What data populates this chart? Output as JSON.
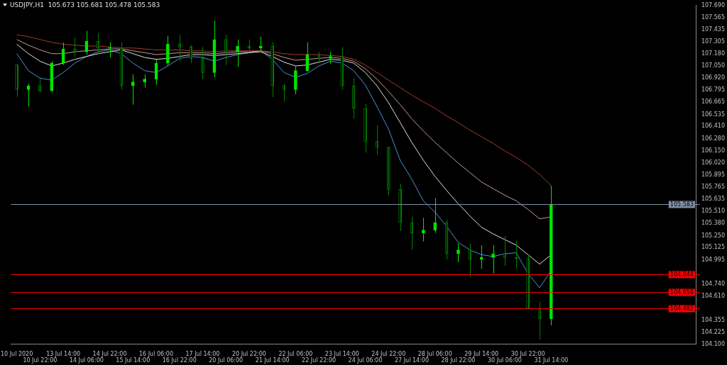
{
  "chart_data": {
    "type": "candlestick",
    "title": "USDJPY,H1  105.673 105.681 105.478 105.583",
    "categories": [
      "10 Jul 2020",
      null,
      "10 Jul 22:00",
      null,
      "13 Jul 14:00",
      null,
      "14 Jul 06:00",
      null,
      "14 Jul 22:00",
      null,
      "15 Jul 14:00",
      null,
      "16 Jul 06:00",
      null,
      "16 Jul 22:00",
      null,
      "17 Jul 14:00",
      null,
      "20 Jul 06:00",
      null,
      "20 Jul 22:00",
      null,
      "21 Jul 14:00",
      null,
      "22 Jul 06:00",
      null,
      "22 Jul 22:00",
      null,
      "23 Jul 14:00",
      null,
      "24 Jul 06:00",
      null,
      "24 Jul 22:00",
      null,
      "27 Jul 14:00",
      null,
      "28 Jul 06:00",
      null,
      "28 Jul 22:00",
      null,
      "29 Jul 14:00",
      null,
      "30 Jul 06:00",
      null,
      "30 Jul 22:00",
      null,
      "31 Jul 14:00",
      null,
      null,
      null,
      null,
      null,
      null,
      null,
      null,
      null,
      null,
      null,
      null
    ],
    "ohlc": [
      [
        107.06,
        107.07,
        106.72,
        106.8
      ],
      [
        106.8,
        106.86,
        106.62,
        106.84
      ],
      [
        106.84,
        106.93,
        106.77,
        106.79
      ],
      [
        106.79,
        107.1,
        106.77,
        107.08
      ],
      [
        107.08,
        107.3,
        107.06,
        107.23
      ],
      [
        107.23,
        107.35,
        107.15,
        107.2
      ],
      [
        107.2,
        107.42,
        107.17,
        107.31
      ],
      [
        107.31,
        107.4,
        107.18,
        107.24
      ],
      [
        107.24,
        107.3,
        107.14,
        107.24
      ],
      [
        107.24,
        107.3,
        106.8,
        106.84
      ],
      [
        106.84,
        106.96,
        106.64,
        106.88
      ],
      [
        106.88,
        106.96,
        106.82,
        106.91
      ],
      [
        106.91,
        107.12,
        106.85,
        107.08
      ],
      [
        107.08,
        107.37,
        107.05,
        107.28
      ],
      [
        107.28,
        107.38,
        107.1,
        107.25
      ],
      [
        107.25,
        107.27,
        107.08,
        107.13
      ],
      [
        107.13,
        107.25,
        106.91,
        106.98
      ],
      [
        106.98,
        107.53,
        106.93,
        107.33
      ],
      [
        107.33,
        107.38,
        107.06,
        107.2
      ],
      [
        107.2,
        107.33,
        107.04,
        107.26
      ],
      [
        107.26,
        107.33,
        107.2,
        107.24
      ],
      [
        107.24,
        107.36,
        107.21,
        107.26
      ],
      [
        107.26,
        107.3,
        106.72,
        106.84
      ],
      [
        106.84,
        106.86,
        106.67,
        106.8
      ],
      [
        106.8,
        107.05,
        106.75,
        107.0
      ],
      [
        107.0,
        107.3,
        106.99,
        107.17
      ],
      [
        107.17,
        107.2,
        107.08,
        107.13
      ],
      [
        107.13,
        107.2,
        107.07,
        107.15
      ],
      [
        107.15,
        107.25,
        106.8,
        106.84
      ],
      [
        106.84,
        106.92,
        106.49,
        106.6
      ],
      [
        106.6,
        106.65,
        106.13,
        106.25
      ],
      [
        106.25,
        106.42,
        106.11,
        106.19
      ],
      [
        106.19,
        106.19,
        105.68,
        105.74
      ],
      [
        105.74,
        105.8,
        105.3,
        105.39
      ],
      [
        105.39,
        105.45,
        105.1,
        105.28
      ],
      [
        105.28,
        105.44,
        105.19,
        105.31
      ],
      [
        105.31,
        105.65,
        105.28,
        105.39
      ],
      [
        105.39,
        105.42,
        105.0,
        105.06
      ],
      [
        105.06,
        105.17,
        104.97,
        105.1
      ],
      [
        105.1,
        105.17,
        104.81,
        105.0
      ],
      [
        105.0,
        105.15,
        104.9,
        105.02
      ],
      [
        105.02,
        105.15,
        104.85,
        105.06
      ],
      [
        105.06,
        105.25,
        104.93,
        105.02
      ],
      [
        105.02,
        105.2,
        104.9,
        105.01
      ],
      [
        105.01,
        105.05,
        104.47,
        104.48
      ],
      [
        104.48,
        104.55,
        104.15,
        104.37
      ],
      [
        104.37,
        105.78,
        104.3,
        105.583
      ],
      null,
      null,
      null,
      null,
      null,
      null,
      null,
      null,
      null,
      null,
      null,
      null
    ],
    "colors": [
      "#007f00",
      "#00e600",
      "#007f00",
      "#00e600",
      "#00e600",
      "#007f00",
      "#00e600",
      "#007f00",
      "#00e600",
      "#007f00",
      "#00e600",
      "#00e600",
      "#00e600",
      "#00e600",
      "#007f00",
      "#007f00",
      "#007f00",
      "#00e600",
      "#007f00",
      "#00e600",
      "#007f00",
      "#00e600",
      "#007f00",
      "#007f00",
      "#00e600",
      "#00e600",
      "#007f00",
      "#00e600",
      "#007f00",
      "#007f00",
      "#007f00",
      "#007f00",
      "#007f00",
      "#007f00",
      "#007f00",
      "#00e600",
      "#00e600",
      "#007f00",
      "#00e600",
      "#007f00",
      "#00e600",
      "#00e600",
      "#007f00",
      "#007f00",
      "#007f00",
      "#007f00",
      "#00e600",
      null,
      null,
      null,
      null,
      null,
      null,
      null,
      null,
      null,
      null,
      null,
      null
    ],
    "series": [
      {
        "type": "line",
        "color": "#a33a28",
        "values": [
          107.38,
          107.36,
          107.33,
          107.3,
          107.28,
          107.27,
          107.26,
          107.26,
          107.25,
          107.24,
          107.24,
          107.23,
          107.22,
          107.22,
          107.22,
          107.21,
          107.21,
          107.2,
          107.21,
          107.21,
          107.21,
          107.21,
          107.2,
          107.18,
          107.17,
          107.17,
          107.17,
          107.16,
          107.15,
          107.12,
          107.06,
          106.98,
          106.9,
          106.82,
          106.74,
          106.67,
          106.6,
          106.52,
          106.45,
          106.37,
          106.3,
          106.23,
          106.15,
          106.08,
          106.0,
          105.9,
          105.78,
          null,
          null,
          null,
          null,
          null,
          null,
          null,
          null,
          null,
          null,
          null,
          null
        ]
      },
      {
        "type": "line",
        "color": "#c89890",
        "values": [
          107.33,
          107.27,
          107.22,
          107.18,
          107.18,
          107.2,
          107.21,
          107.22,
          107.23,
          107.23,
          107.21,
          107.19,
          107.17,
          107.18,
          107.19,
          107.19,
          107.19,
          107.18,
          107.19,
          107.2,
          107.2,
          107.21,
          107.18,
          107.14,
          107.11,
          107.12,
          107.13,
          107.14,
          107.13,
          107.1,
          107.02,
          106.91,
          106.78,
          106.64,
          106.49,
          106.36,
          106.24,
          106.13,
          106.02,
          105.92,
          105.82,
          105.75,
          105.68,
          105.62,
          105.53,
          105.43,
          105.45,
          null,
          null,
          null,
          null,
          null,
          null,
          null,
          null,
          null,
          null,
          null,
          null
        ]
      },
      {
        "type": "line",
        "color": "#e0e0e0",
        "values": [
          107.28,
          107.18,
          107.1,
          107.05,
          107.08,
          107.12,
          107.15,
          107.18,
          107.2,
          107.22,
          107.18,
          107.14,
          107.12,
          107.13,
          107.15,
          107.17,
          107.17,
          107.16,
          107.17,
          107.18,
          107.19,
          107.2,
          107.15,
          107.09,
          107.05,
          107.06,
          107.09,
          107.12,
          107.11,
          107.08,
          106.98,
          106.84,
          106.66,
          106.45,
          106.24,
          106.05,
          105.88,
          105.73,
          105.59,
          105.46,
          105.34,
          105.27,
          105.21,
          105.15,
          105.05,
          104.95,
          105.05,
          null,
          null,
          null,
          null,
          null,
          null,
          null,
          null,
          null,
          null,
          null,
          null
        ]
      },
      {
        "type": "line",
        "color": "#4a90d9",
        "values": [
          107.18,
          107.0,
          106.92,
          106.9,
          106.98,
          107.08,
          107.15,
          107.2,
          107.22,
          107.18,
          107.08,
          107.0,
          106.98,
          107.05,
          107.13,
          107.15,
          107.14,
          107.1,
          107.14,
          107.17,
          107.19,
          107.21,
          107.12,
          106.98,
          106.93,
          106.97,
          107.05,
          107.1,
          107.08,
          107.0,
          106.85,
          106.62,
          106.38,
          106.05,
          105.85,
          105.62,
          105.5,
          105.35,
          105.18,
          105.1,
          105.05,
          105.03,
          105.06,
          105.07,
          104.85,
          104.7,
          104.88,
          null,
          null,
          null,
          null,
          null,
          null,
          null,
          null,
          null,
          null,
          null,
          null
        ]
      }
    ],
    "ref_lines": [
      {
        "axis": "y",
        "value": 105.583,
        "label": "105.583",
        "color": "#8090a8"
      },
      {
        "axis": "y",
        "value": 104.844,
        "label": "104.844",
        "color": "#ff0000"
      },
      {
        "axis": "y",
        "value": 104.658,
        "label": "104.658",
        "color": "#ff0000"
      },
      {
        "axis": "y",
        "value": 104.482,
        "label": "104.482",
        "color": "#ff0000"
      }
    ],
    "ylim": [
      104.1,
      107.69
    ],
    "yticks": [
      {
        "value": 107.69,
        "label": "107.690"
      },
      {
        "value": 107.565,
        "label": "107.565"
      },
      {
        "value": 107.435,
        "label": "107.435"
      },
      {
        "value": 107.305,
        "label": "107.305"
      },
      {
        "value": 107.18,
        "label": "107.180"
      },
      {
        "value": 107.05,
        "label": "107.050"
      },
      {
        "value": 106.92,
        "label": "106.920"
      },
      {
        "value": 106.795,
        "label": "106.795"
      },
      {
        "value": 106.665,
        "label": "106.665"
      },
      {
        "value": 106.535,
        "label": "106.535"
      },
      {
        "value": 106.41,
        "label": "106.410"
      },
      {
        "value": 106.28,
        "label": "106.280"
      },
      {
        "value": 106.15,
        "label": "106.150"
      },
      {
        "value": 106.02,
        "label": "106.020"
      },
      {
        "value": 105.895,
        "label": "105.895"
      },
      {
        "value": 105.765,
        "label": "105.765"
      },
      {
        "value": 105.635,
        "label": "105.635"
      },
      {
        "value": 105.51,
        "label": "105.510"
      },
      {
        "value": 105.38,
        "label": "105.380"
      },
      {
        "value": 105.25,
        "label": "105.250"
      },
      {
        "value": 105.125,
        "label": "105.125"
      },
      {
        "value": 104.995,
        "label": "104.995"
      },
      {
        "value": 104.74,
        "label": "104.740"
      },
      {
        "value": 104.61,
        "label": "104.610"
      },
      {
        "value": 104.355,
        "label": "104.355"
      },
      {
        "value": 104.225,
        "label": "104.225"
      },
      {
        "value": 104.1,
        "label": "104.100"
      }
    ],
    "grid": false,
    "legend": false
  }
}
